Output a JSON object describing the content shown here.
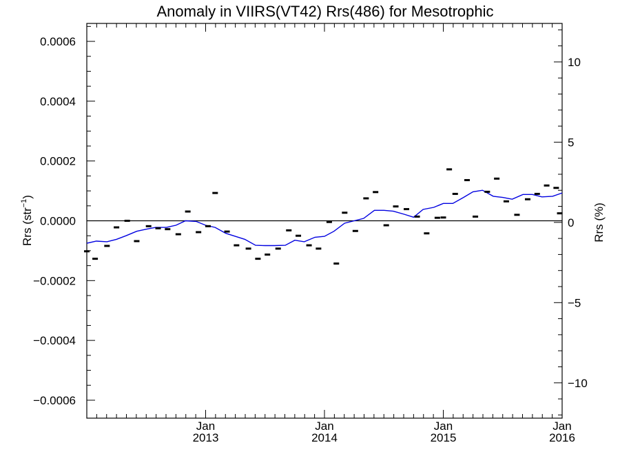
{
  "chart_data": {
    "type": "line",
    "title": "Anomaly in VIIRS(VT42) Rrs(486) for Mesotrophic",
    "ylabel_left_main": "Rrs (str",
    "ylabel_left_sup": "−1",
    "ylabel_left_end": ")",
    "ylabel_right": "Rrs (%)",
    "x_range": [
      2012.0,
      2016.0
    ],
    "ylim_left": [
      -0.00066,
      0.00066
    ],
    "ylim_right": [
      -12.2,
      12.4
    ],
    "x_ticks": [
      {
        "x": 2013,
        "month": "Jan",
        "year": "2013"
      },
      {
        "x": 2014,
        "month": "Jan",
        "year": "2014"
      },
      {
        "x": 2015,
        "month": "Jan",
        "year": "2015"
      },
      {
        "x": 2016,
        "month": "Jan",
        "year": "2016"
      }
    ],
    "y_ticks_left": [
      {
        "v": 0.0006,
        "label": "0.0006"
      },
      {
        "v": 0.0004,
        "label": "0.0004"
      },
      {
        "v": 0.0002,
        "label": "0.0002"
      },
      {
        "v": 0.0,
        "label": "0.0000"
      },
      {
        "v": -0.0002,
        "label": "−0.0002"
      },
      {
        "v": -0.0004,
        "label": "−0.0004"
      },
      {
        "v": -0.0006,
        "label": "−0.0006"
      }
    ],
    "y_ticks_right": [
      {
        "v": 10,
        "label": "10"
      },
      {
        "v": 5,
        "label": "5"
      },
      {
        "v": 0,
        "label": "0"
      },
      {
        "v": -5,
        "label": "−5"
      },
      {
        "v": -10,
        "label": "−10"
      }
    ],
    "zero_line": 0,
    "series": [
      {
        "type": "scatter",
        "marker": "dash",
        "color": "#000000",
        "x": [
          2012.0,
          2012.07,
          2012.17,
          2012.25,
          2012.34,
          2012.42,
          2012.52,
          2012.6,
          2012.68,
          2012.77,
          2012.85,
          2012.94,
          2013.02,
          2013.08,
          2013.18,
          2013.26,
          2013.36,
          2013.44,
          2013.52,
          2013.61,
          2013.7,
          2013.78,
          2013.87,
          2013.95,
          2014.04,
          2014.1,
          2014.17,
          2014.26,
          2014.35,
          2014.43,
          2014.52,
          2014.6,
          2014.69,
          2014.78,
          2014.86,
          2014.95,
          2015.05,
          2015.0,
          2015.1,
          2015.2,
          2015.27,
          2015.37,
          2015.45,
          2015.53,
          2015.62,
          2015.71,
          2015.79,
          2015.87,
          2015.95,
          2015.98
        ],
        "y": [
          -0.000102,
          -0.000127,
          -8.4e-05,
          -2.2e-05,
          0.0,
          -6.8e-05,
          -1.8e-05,
          -2.5e-05,
          -2.8e-05,
          -4.5e-05,
          3.1e-05,
          -3.8e-05,
          -1.8e-05,
          9.3e-05,
          -3.6e-05,
          -8.2e-05,
          -9.3e-05,
          -0.000127,
          -0.000113,
          -9.3e-05,
          -3.2e-05,
          -5e-05,
          -8.2e-05,
          -9.3e-05,
          -4e-06,
          -0.000143,
          2.7e-05,
          -3.4e-05,
          7.5e-05,
          9.6e-05,
          -1.5e-05,
          4.8e-05,
          3.9e-05,
          1.4e-05,
          -4.2e-05,
          1e-05,
          0.000172,
          1.1e-05,
          9e-05,
          0.000136,
          1.4e-05,
          9.7e-05,
          0.000141,
          6.5e-05,
          2e-05,
          7.2e-05,
          9e-05,
          0.000118,
          0.00011,
          2.5e-05
        ]
      },
      {
        "type": "line",
        "color": "#0000e0",
        "x": [
          2012.0,
          2012.08,
          2012.17,
          2012.25,
          2012.33,
          2012.42,
          2012.5,
          2012.58,
          2012.67,
          2012.75,
          2012.83,
          2012.92,
          2013.0,
          2013.08,
          2013.17,
          2013.25,
          2013.33,
          2013.42,
          2013.5,
          2013.58,
          2013.67,
          2013.75,
          2013.83,
          2013.92,
          2014.0,
          2014.08,
          2014.17,
          2014.25,
          2014.33,
          2014.42,
          2014.5,
          2014.58,
          2014.67,
          2014.75,
          2014.83,
          2014.92,
          2015.0,
          2015.08,
          2015.17,
          2015.25,
          2015.33,
          2015.42,
          2015.5,
          2015.58,
          2015.67,
          2015.75,
          2015.83,
          2015.92,
          2016.0
        ],
        "y": [
          -7.5e-05,
          -6.8e-05,
          -7e-05,
          -6.2e-05,
          -5e-05,
          -3.5e-05,
          -2.8e-05,
          -2.2e-05,
          -2.2e-05,
          -1.5e-05,
          0.0,
          -2e-06,
          -1.5e-05,
          -2.2e-05,
          -4.2e-05,
          -5.2e-05,
          -6.2e-05,
          -8.2e-05,
          -8.3e-05,
          -8.3e-05,
          -8.2e-05,
          -6.5e-05,
          -7e-05,
          -5.5e-05,
          -5.2e-05,
          -3.5e-05,
          -8e-06,
          0.0,
          8e-06,
          3.5e-05,
          3.5e-05,
          3.2e-05,
          2.2e-05,
          1.2e-05,
          3.8e-05,
          4.5e-05,
          5.8e-05,
          5.8e-05,
          7.8e-05,
          9.7e-05,
          0.000102,
          8.2e-05,
          7.8e-05,
          7.2e-05,
          8.8e-05,
          8.8e-05,
          8e-05,
          8.2e-05,
          9.3e-05
        ]
      }
    ]
  }
}
